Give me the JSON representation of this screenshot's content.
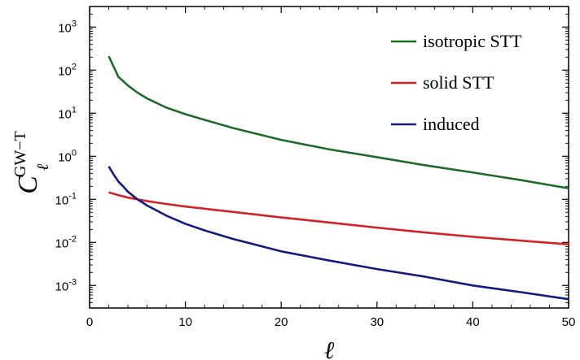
{
  "chart_data": {
    "type": "line",
    "xlabel": "ℓ",
    "ylabel": {
      "main": "C",
      "subscript": "ℓ",
      "superscript": "GW−T"
    },
    "xlim": [
      0,
      50
    ],
    "ylim": [
      0.0003,
      3000
    ],
    "yscale": "log",
    "grid": false,
    "legend_position": "top-right",
    "x_ticks": [
      0,
      10,
      20,
      30,
      40,
      50
    ],
    "y_ticks": [
      {
        "value": 0.001,
        "base": "10",
        "exp": "-3"
      },
      {
        "value": 0.01,
        "base": "10",
        "exp": "-2"
      },
      {
        "value": 0.1,
        "base": "10",
        "exp": "-1"
      },
      {
        "value": 1,
        "base": "10",
        "exp": "0"
      },
      {
        "value": 10,
        "base": "10",
        "exp": "1"
      },
      {
        "value": 100,
        "base": "10",
        "exp": "2"
      },
      {
        "value": 1000,
        "base": "10",
        "exp": "3"
      }
    ],
    "series": [
      {
        "name": "isotropic STT",
        "color": "#1e6b28",
        "x": [
          2,
          3,
          4,
          5,
          6,
          8,
          10,
          12,
          15,
          20,
          25,
          30,
          35,
          40,
          45,
          50
        ],
        "values": [
          210,
          70,
          44,
          30,
          22,
          13.5,
          9.5,
          7.0,
          4.5,
          2.4,
          1.45,
          0.95,
          0.62,
          0.42,
          0.28,
          0.18
        ]
      },
      {
        "name": "solid STT",
        "color": "#d42027",
        "x": [
          2,
          3,
          4,
          5,
          6,
          8,
          10,
          15,
          20,
          25,
          30,
          35,
          40,
          45,
          50
        ],
        "values": [
          0.145,
          0.125,
          0.11,
          0.1,
          0.091,
          0.078,
          0.068,
          0.051,
          0.038,
          0.029,
          0.022,
          0.017,
          0.0135,
          0.011,
          0.009
        ]
      },
      {
        "name": "induced",
        "color": "#141a80",
        "x": [
          2,
          2.5,
          3,
          3.5,
          4,
          5,
          6,
          8,
          10,
          12,
          15,
          20,
          25,
          30,
          35,
          40,
          45,
          50
        ],
        "values": [
          0.58,
          0.38,
          0.26,
          0.2,
          0.15,
          0.1,
          0.072,
          0.042,
          0.027,
          0.019,
          0.012,
          0.0062,
          0.0038,
          0.0024,
          0.0016,
          0.001,
          0.0007,
          0.00048
        ]
      }
    ]
  }
}
